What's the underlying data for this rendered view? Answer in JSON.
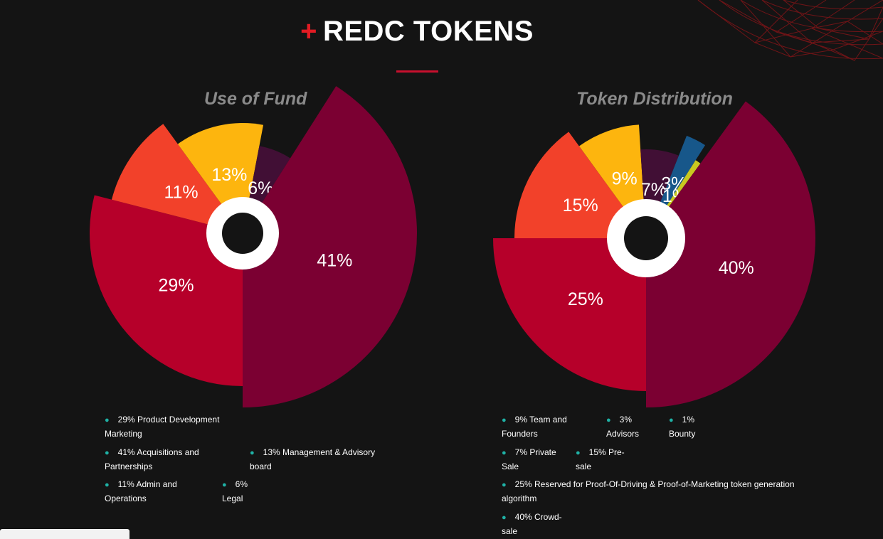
{
  "header": {
    "plus": "+",
    "title": "REDC TOKENS"
  },
  "chart_data": [
    {
      "type": "pie",
      "title": "Use of Fund",
      "slices": [
        {
          "label": "29% Product Development Marketing",
          "value": 29,
          "display": "29%",
          "color": "#b6002a"
        },
        {
          "label": "11% Admin and Operations",
          "value": 11,
          "display": "11%",
          "color": "#f2412a"
        },
        {
          "label": "13% Management & Advisory board",
          "value": 13,
          "display": "13%",
          "color": "#fdb50e"
        },
        {
          "label": "6% Legal",
          "value": 6,
          "display": "6%",
          "color": "#410f35"
        },
        {
          "label": "41% Acquisitions and Partnerships",
          "value": 41,
          "display": "41%",
          "color": "#7b0032"
        }
      ]
    },
    {
      "type": "pie",
      "title": "Token Distribution",
      "slices": [
        {
          "label": "25% Reserved for Proof-Of-Driving & Proof-of-Marketing token generation algorithm",
          "value": 25,
          "display": "25%",
          "color": "#b6002a"
        },
        {
          "label": "15% Pre-sale",
          "value": 15,
          "display": "15%",
          "color": "#f2412a"
        },
        {
          "label": "9% Team and Founders",
          "value": 9,
          "display": "9%",
          "color": "#fdb50e"
        },
        {
          "label": "7% Private Sale",
          "value": 7,
          "display": "7%",
          "color": "#410f35"
        },
        {
          "label": "3% Advisors",
          "value": 3,
          "display": "3%",
          "color": "#17578a"
        },
        {
          "label": "1% Bounty",
          "value": 1,
          "display": "1%",
          "color": "#c9c820"
        },
        {
          "label": "40% Crowd-sale",
          "value": 40,
          "display": "40%",
          "color": "#7b0032"
        }
      ]
    }
  ],
  "legend_fund": [
    {
      "line1": "29% Product Development",
      "line2": "Marketing"
    },
    {
      "line1": "41% Acquisitions and",
      "line2": "Partnerships"
    },
    {
      "line1": "13% Management & Advisory",
      "line2": "board"
    },
    {
      "line1": "11% Admin and",
      "line2": "Operations"
    },
    {
      "line1": "6%",
      "line2": "Legal"
    }
  ],
  "legend_token": [
    {
      "line1": "9% Team and",
      "line2": "Founders"
    },
    {
      "line1": "3%",
      "line2": "Advisors"
    },
    {
      "line1": "1%",
      "line2": "Bounty"
    },
    {
      "line1": "7% Private",
      "line2": "Sale"
    },
    {
      "line1": "15% Pre-",
      "line2": "sale"
    },
    {
      "line1": "25% Reserved for Proof-Of-Driving & Proof-of-Marketing token generation",
      "line2": "algorithm"
    },
    {
      "line1": "40% Crowd-",
      "line2": "sale"
    }
  ],
  "colors": {
    "background": "#141414",
    "accent_red": "#e21b23",
    "legend_dot": "#1fb1a5",
    "title_gray": "#8a8a8a"
  }
}
